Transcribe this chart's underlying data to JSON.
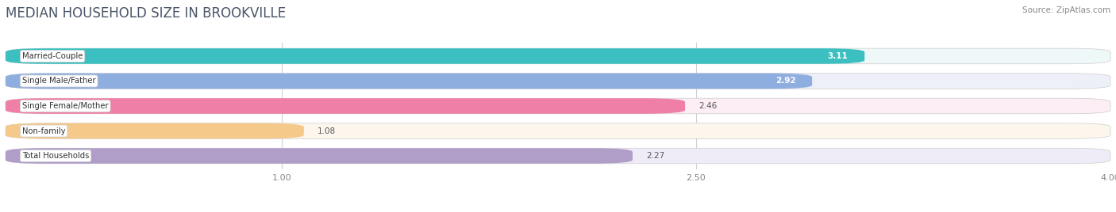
{
  "title": "MEDIAN HOUSEHOLD SIZE IN BROOKVILLE",
  "source": "Source: ZipAtlas.com",
  "categories": [
    "Married-Couple",
    "Single Male/Father",
    "Single Female/Mother",
    "Non-family",
    "Total Households"
  ],
  "values": [
    3.11,
    2.92,
    2.46,
    1.08,
    2.27
  ],
  "bar_colors": [
    "#3bbfc0",
    "#8faee0",
    "#f07fa8",
    "#f5c98a",
    "#b09ec9"
  ],
  "bar_bg_colors": [
    "#eff8f8",
    "#eef0f9",
    "#fceef4",
    "#fdf6ed",
    "#f0ecf7"
  ],
  "value_inside": [
    true,
    true,
    false,
    false,
    false
  ],
  "value_colors_inside": [
    "#ffffff",
    "#ffffff",
    "#666666",
    "#666666",
    "#666666"
  ],
  "xlim": [
    0.0,
    4.2
  ],
  "xmin": 0.0,
  "xmax": 4.0,
  "xticks": [
    1.0,
    2.5,
    4.0
  ],
  "label_bg": "#ffffff",
  "title_color": "#4a5568",
  "title_fontsize": 12,
  "bar_height": 0.62,
  "bar_gap": 1.0,
  "figsize": [
    14.06,
    2.68
  ],
  "dpi": 100,
  "bg_color": "#ffffff",
  "grid_color": "#d0d0d0",
  "tick_color": "#888888"
}
